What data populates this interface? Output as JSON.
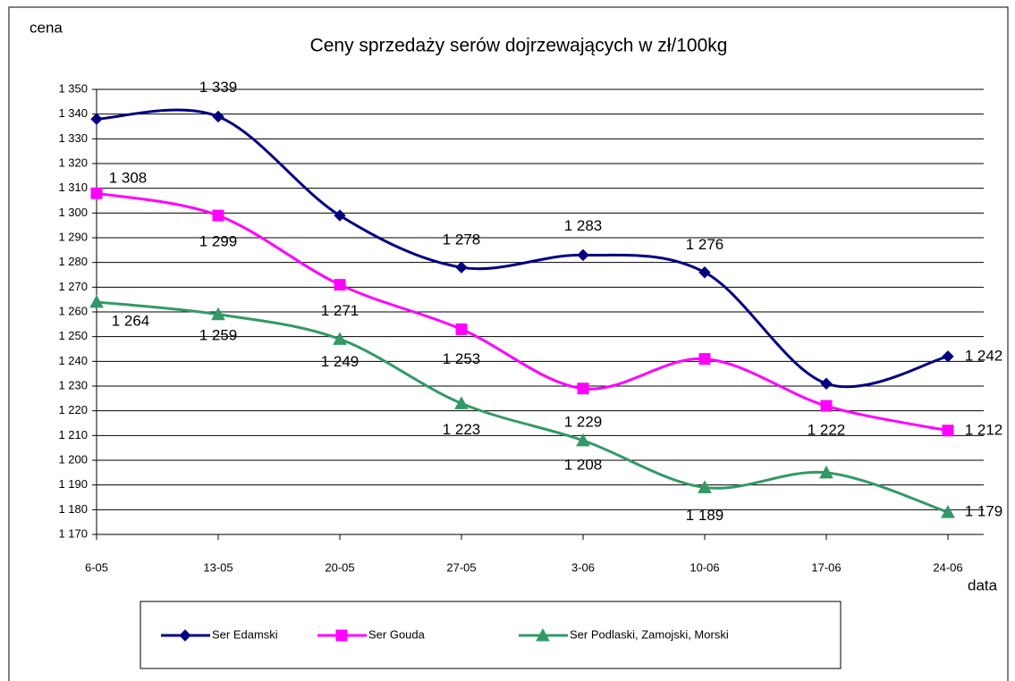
{
  "chart_data": {
    "type": "line",
    "title": "Ceny sprzedaży serów dojrzewających w zł/100kg",
    "y_label": "cena",
    "x_label": "data",
    "categories": [
      "6-05",
      "13-05",
      "20-05",
      "27-05",
      "3-06",
      "10-06",
      "17-06",
      "24-06"
    ],
    "series": [
      {
        "name": "Ser Edamski",
        "color": "#000080",
        "marker": "diamond",
        "values": [
          1338,
          1339,
          1299,
          1278,
          1283,
          1276,
          1231,
          1242
        ],
        "value_labels": [
          null,
          "1 339",
          null,
          "1 278",
          "1 283",
          "1 276",
          null,
          "1 242"
        ]
      },
      {
        "name": "Ser Gouda",
        "color": "#ff00ff",
        "marker": "square",
        "values": [
          1308,
          1299,
          1271,
          1253,
          1229,
          1241,
          1222,
          1212
        ],
        "value_labels": [
          "1 308",
          "1 299",
          "1 271",
          "1 253",
          "1 229",
          null,
          "1 222",
          "1 212"
        ]
      },
      {
        "name": "Ser Podlaski, Zamojski, Morski",
        "color": "#339966",
        "marker": "triangle",
        "values": [
          1264,
          1259,
          1249,
          1223,
          1208,
          1189,
          1195,
          1179
        ],
        "value_labels": [
          "1 264",
          "1 259",
          "1 249",
          "1 223",
          "1 208",
          "1 189",
          null,
          "1 179"
        ]
      }
    ],
    "ylim": [
      1170,
      1350
    ],
    "yticks": [
      {
        "value": 1170,
        "label": "1 170"
      },
      {
        "value": 1180,
        "label": "1 180"
      },
      {
        "value": 1190,
        "label": "1 190"
      },
      {
        "value": 1200,
        "label": "1 200"
      },
      {
        "value": 1210,
        "label": "1 210"
      },
      {
        "value": 1220,
        "label": "1 220"
      },
      {
        "value": 1230,
        "label": "1 230"
      },
      {
        "value": 1240,
        "label": "1 240"
      },
      {
        "value": 1250,
        "label": "1 250"
      },
      {
        "value": 1260,
        "label": "1 260"
      },
      {
        "value": 1270,
        "label": "1 270"
      },
      {
        "value": 1280,
        "label": "1 280"
      },
      {
        "value": 1290,
        "label": "1 290"
      },
      {
        "value": 1300,
        "label": "1 300"
      },
      {
        "value": 1310,
        "label": "1 310"
      },
      {
        "value": 1320,
        "label": "1 320"
      },
      {
        "value": 1330,
        "label": "1 330"
      },
      {
        "value": 1340,
        "label": "1 340"
      },
      {
        "value": 1350,
        "label": "1 350"
      }
    ],
    "grid": true,
    "legend": "bottom"
  }
}
